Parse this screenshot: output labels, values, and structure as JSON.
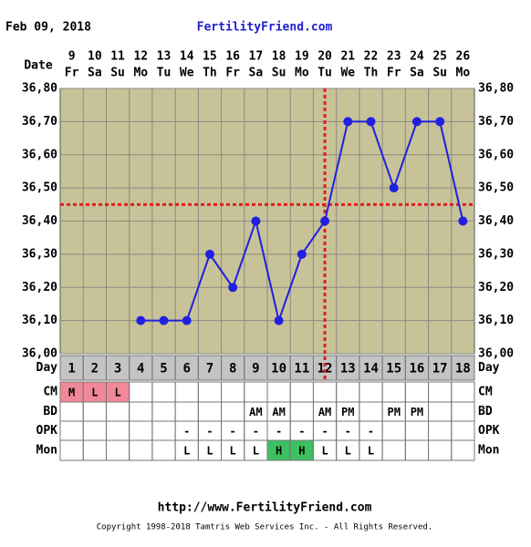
{
  "header": {
    "date": "Feb 09, 2018",
    "site": "FertilityFriend.com"
  },
  "chart_data": {
    "type": "line",
    "x_label": "Date",
    "dates": [
      "9",
      "10",
      "11",
      "12",
      "13",
      "14",
      "15",
      "16",
      "17",
      "18",
      "19",
      "20",
      "21",
      "22",
      "23",
      "24",
      "25",
      "26"
    ],
    "weekdays": [
      "Fr",
      "Sa",
      "Su",
      "Mo",
      "Tu",
      "We",
      "Th",
      "Fr",
      "Sa",
      "Su",
      "Mo",
      "Tu",
      "We",
      "Th",
      "Fr",
      "Sa",
      "Su",
      "Mo"
    ],
    "values": [
      null,
      null,
      null,
      36.1,
      36.1,
      36.1,
      36.3,
      36.2,
      36.4,
      36.1,
      36.3,
      36.4,
      36.7,
      36.7,
      36.5,
      36.7,
      36.7,
      36.4
    ],
    "color": "#2020e0",
    "ylim": [
      36.0,
      36.8
    ],
    "yticks": [
      {
        "value": 36.0,
        "label": "36,00"
      },
      {
        "value": 36.1,
        "label": "36,10"
      },
      {
        "value": 36.2,
        "label": "36,20"
      },
      {
        "value": 36.3,
        "label": "36,30"
      },
      {
        "value": 36.4,
        "label": "36,40"
      },
      {
        "value": 36.5,
        "label": "36,50"
      },
      {
        "value": 36.6,
        "label": "36,60"
      },
      {
        "value": 36.7,
        "label": "36,70"
      },
      {
        "value": 36.8,
        "label": "36,80"
      }
    ],
    "grid": true,
    "coverline": 36.45,
    "ovulation_cycle_day": 12,
    "marker_color": "#dd2020"
  },
  "table": {
    "rows": [
      {
        "label": "Day",
        "cells": [
          1,
          2,
          3,
          4,
          5,
          6,
          7,
          8,
          9,
          10,
          11,
          12,
          13,
          14,
          15,
          16,
          17,
          18
        ]
      },
      {
        "label": "CM",
        "cells": [
          "M",
          "L",
          "L",
          null,
          null,
          null,
          null,
          null,
          null,
          null,
          null,
          null,
          null,
          null,
          null,
          null,
          null,
          null
        ],
        "cell_fill": {
          "M": "#f08898",
          "L": "#f08898"
        }
      },
      {
        "label": "BD",
        "cells": [
          null,
          null,
          null,
          null,
          null,
          null,
          null,
          null,
          "AM",
          "AM",
          null,
          "AM",
          "PM",
          null,
          "PM",
          "PM",
          null,
          null
        ]
      },
      {
        "label": "OPK",
        "cells": [
          null,
          null,
          null,
          null,
          null,
          "-",
          "-",
          "-",
          "-",
          "-",
          "-",
          "-",
          "-",
          "-",
          null,
          null,
          null,
          null
        ]
      },
      {
        "label": "Mon",
        "cells": [
          null,
          null,
          null,
          null,
          null,
          "L",
          "L",
          "L",
          "L",
          "H",
          "H",
          "L",
          "L",
          "L",
          null,
          null,
          null,
          null
        ],
        "cell_fill": {
          "H": "#3cc060"
        }
      }
    ]
  },
  "footer": {
    "url": "http://www.FertilityFriend.com",
    "copyright": "Copyright 1998-2018 Tamtris Web Services Inc. - All Rights Reserved."
  }
}
